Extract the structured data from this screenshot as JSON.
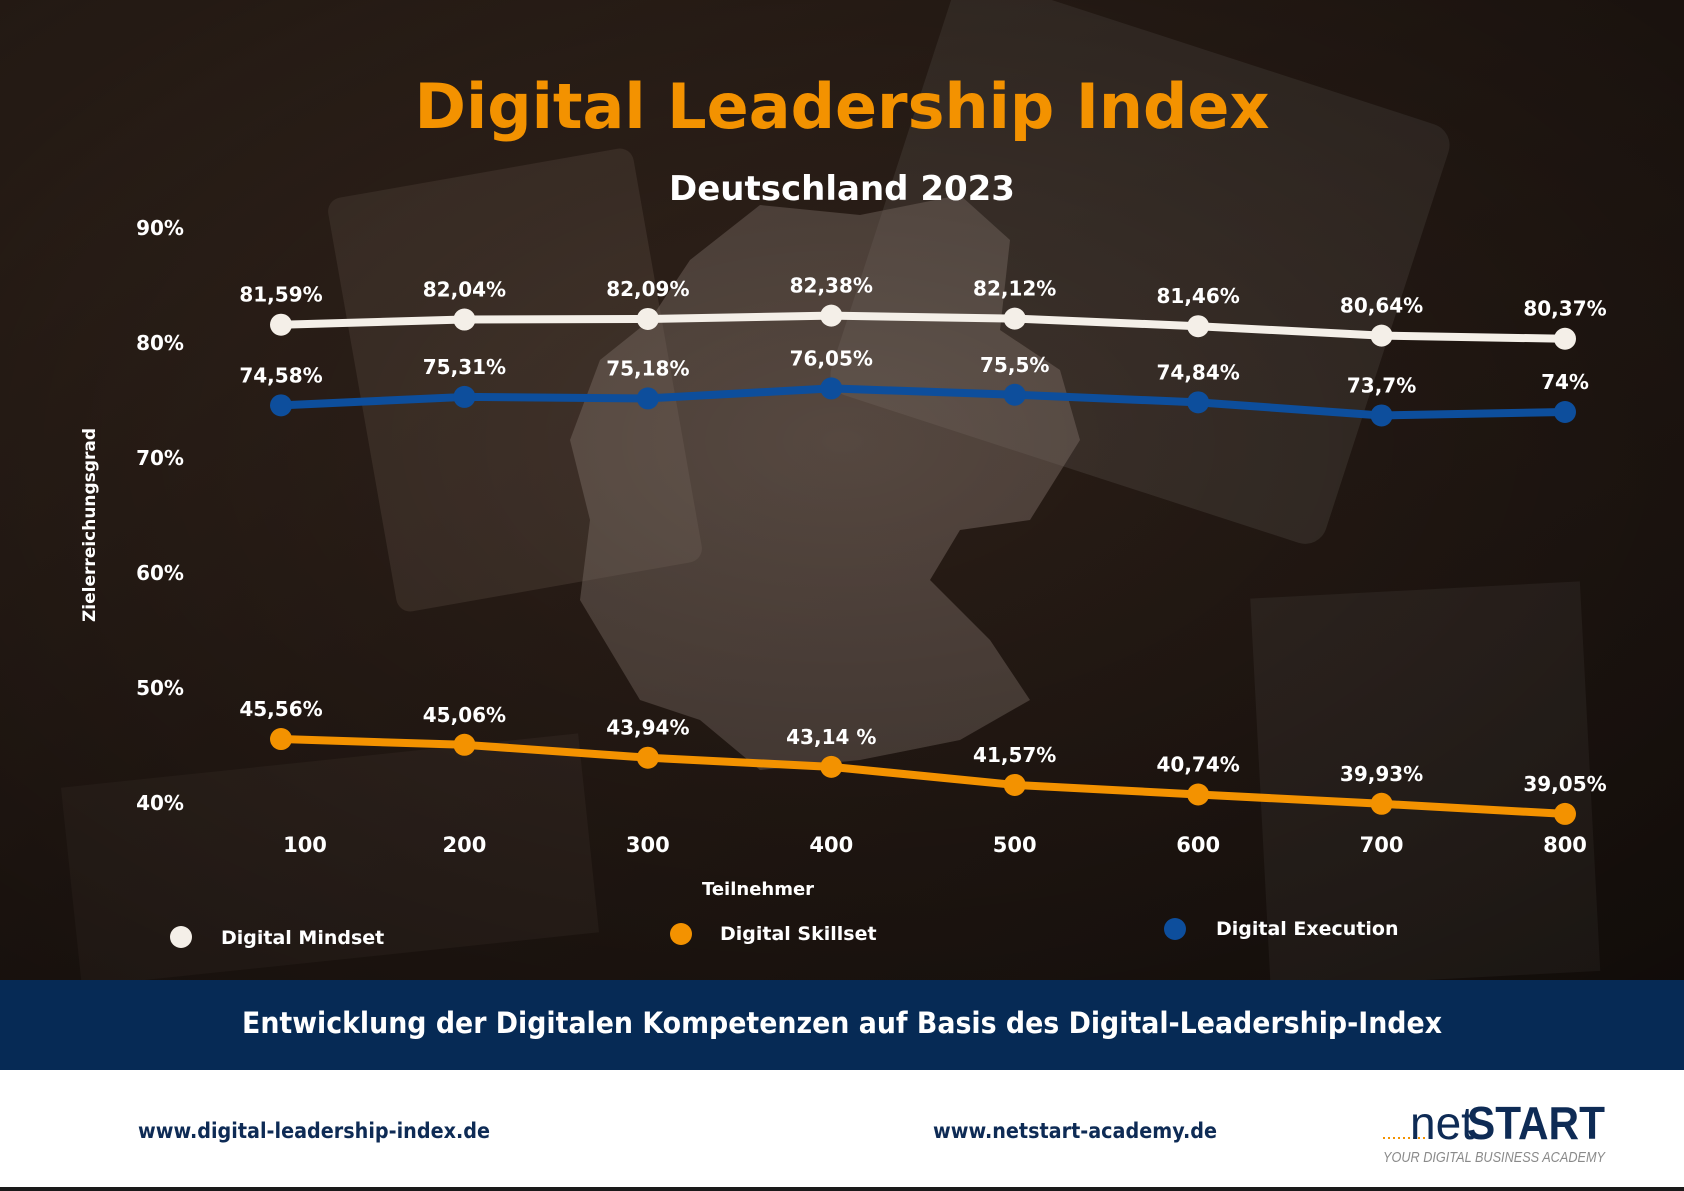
{
  "colors": {
    "mindset": "#f4efe8",
    "skillset": "#f39200",
    "execution": "#0d4e9c",
    "title": "#f39200",
    "banner": "#062a55",
    "text": "#ffffff",
    "footer_text": "#0e2b55"
  },
  "header": {
    "title": "Digital Leadership Index",
    "subtitle": "Deutschland 2023"
  },
  "banner": {
    "text": "Entwicklung der Digitalen Kompetenzen auf Basis des Digital-Leadership-Index"
  },
  "footer": {
    "link_left": "www.digital-leadership-index.de",
    "link_center": "www.netstart-academy.de",
    "logo_net": "net",
    "logo_start": "START",
    "logo_tagline": "YOUR DIGITAL BUSINESS ACADEMY"
  },
  "chart_data": {
    "type": "line",
    "title": "Digital Leadership Index",
    "subtitle": "Deutschland 2023",
    "xlabel": "Teilnehmer",
    "ylabel": "Zielerreichungsgrad",
    "x": [
      100,
      200,
      300,
      400,
      500,
      600,
      700,
      800
    ],
    "x_tick_labels": [
      "100",
      "200",
      "300",
      "400",
      "500",
      "600",
      "700",
      "800"
    ],
    "y_ticks": [
      40,
      50,
      60,
      70,
      80,
      90
    ],
    "y_tick_labels": [
      "40%",
      "50%",
      "60%",
      "70%",
      "80%",
      "90%"
    ],
    "ylim": [
      40,
      90
    ],
    "grid": false,
    "legend_position": "bottom",
    "series": [
      {
        "name": "Digital Mindset",
        "color_key": "mindset",
        "values": [
          81.59,
          82.04,
          82.09,
          82.38,
          82.12,
          81.46,
          80.64,
          80.37
        ],
        "labels": [
          "81,59%",
          "82,04%",
          "82,09%",
          "82,38%",
          "82,12%",
          "81,46%",
          "80,64%",
          "80,37%"
        ]
      },
      {
        "name": "Digital Skillset",
        "color_key": "skillset",
        "values": [
          45.56,
          45.06,
          43.94,
          43.14,
          41.57,
          40.74,
          39.93,
          39.05
        ],
        "labels": [
          "45,56%",
          "45,06%",
          "43,94%",
          "43,14 %",
          "41,57%",
          "40,74%",
          "39,93%",
          "39,05%"
        ]
      },
      {
        "name": "Digital Execution",
        "color_key": "execution",
        "values": [
          74.58,
          75.31,
          75.18,
          76.05,
          75.5,
          74.84,
          73.7,
          74
        ],
        "labels": [
          "74,58%",
          "75,31%",
          "75,18%",
          "76,05%",
          "75,5%",
          "74,84%",
          "73,7%",
          "74%"
        ]
      }
    ]
  }
}
